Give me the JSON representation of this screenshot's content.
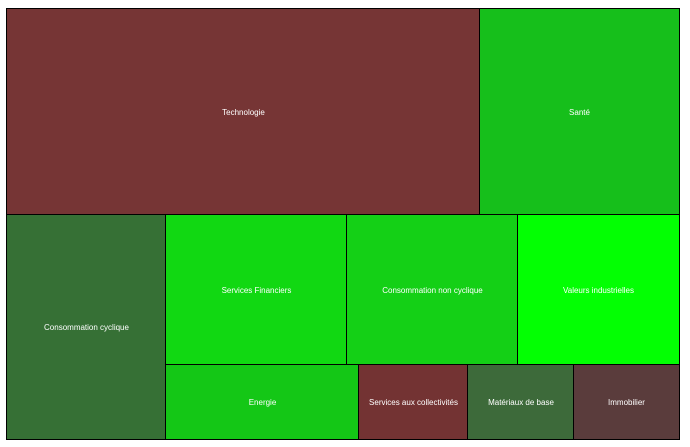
{
  "chart_data": {
    "type": "treemap",
    "title": "",
    "tiles": [
      {
        "key": "technologie",
        "label": "Technologie",
        "color": "#763535"
      },
      {
        "key": "sante",
        "label": "Santé",
        "color": "#16bf1b"
      },
      {
        "key": "consommation-cyclique",
        "label": "Consommation cyclique",
        "color": "#367035"
      },
      {
        "key": "services-financiers",
        "label": "Services Financiers",
        "color": "#11d812"
      },
      {
        "key": "consommation-non-cyclique",
        "label": "Consommation non cyclique",
        "color": "#14d016"
      },
      {
        "key": "valeurs-industrielles",
        "label": "Valeurs industrielles",
        "color": "#03ff03"
      },
      {
        "key": "energie",
        "label": "Energie",
        "color": "#14c716"
      },
      {
        "key": "services-aux-collectivites",
        "label": "Services aux collectivités",
        "color": "#733333"
      },
      {
        "key": "materiaux-de-base",
        "label": "Matériaux de base",
        "color": "#3d6a3a"
      },
      {
        "key": "immobilier",
        "label": "Immobilier",
        "color": "#5a3c3c"
      }
    ]
  }
}
